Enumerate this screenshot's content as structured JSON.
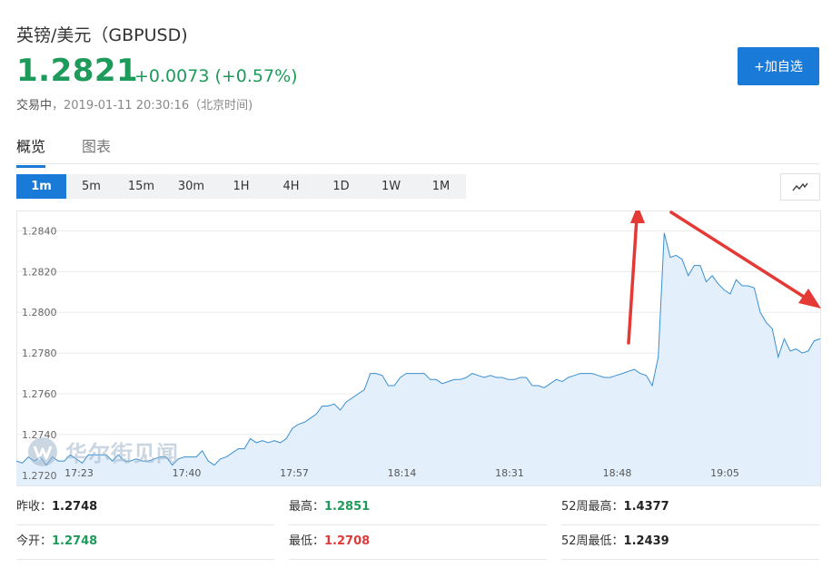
{
  "header": {
    "title": "英镑/美元（GBPUSD)",
    "price": "1.2821",
    "change": "+0.0073 (+0.57%)",
    "status_label": "交易中",
    "status_time": "，2019-01-11 20:30:16（北京时间)",
    "add_watchlist": "+加自选"
  },
  "tabs": [
    {
      "label": "概览",
      "active": true
    },
    {
      "label": "图表",
      "active": false
    }
  ],
  "periods": [
    "1m",
    "5m",
    "15m",
    "30m",
    "1H",
    "4H",
    "1D",
    "1W",
    "1M"
  ],
  "active_period": "1m",
  "chart_type_icon": "line-chart-icon",
  "watermark": "华尔街见闻",
  "colors": {
    "accent": "#1a7ad8",
    "up": "#1e9a5a",
    "down": "#e03a3a",
    "line": "#3a8fd0",
    "fill": "#e3f0fc",
    "annotation": "#e53935"
  },
  "chart_data": {
    "type": "area",
    "title": "",
    "xlabel": "",
    "ylabel": "",
    "ylim": [
      1.2715,
      1.285
    ],
    "yticks": [
      "1.2840",
      "1.2820",
      "1.2800",
      "1.2780",
      "1.2760",
      "1.2740",
      "1.2720"
    ],
    "xticks": [
      "17:23",
      "17:40",
      "17:57",
      "18:14",
      "18:31",
      "18:48",
      "19:05"
    ],
    "grid": true,
    "series": [
      {
        "values": [
          1.2727,
          1.2726,
          1.2729,
          1.2727,
          1.2729,
          1.2725,
          1.2729,
          1.2727,
          1.2727,
          1.273,
          1.2728,
          1.2726,
          1.273,
          1.273,
          1.273,
          1.273,
          1.2727,
          1.273,
          1.2727,
          1.2727,
          1.2728,
          1.2727,
          1.2727,
          1.2728,
          1.2729,
          1.2729,
          1.2725,
          1.2728,
          1.2729,
          1.2729,
          1.2729,
          1.2732,
          1.2727,
          1.2725,
          1.2728,
          1.2729,
          1.2731,
          1.2733,
          1.2733,
          1.2738,
          1.2736,
          1.2737,
          1.2736,
          1.2737,
          1.2736,
          1.2738,
          1.2743,
          1.2745,
          1.2746,
          1.2748,
          1.275,
          1.2754,
          1.2754,
          1.2755,
          1.2752,
          1.2756,
          1.2758,
          1.276,
          1.2762,
          1.277,
          1.277,
          1.2769,
          1.2764,
          1.2764,
          1.2768,
          1.277,
          1.277,
          1.277,
          1.277,
          1.2767,
          1.2767,
          1.2765,
          1.2766,
          1.2767,
          1.2767,
          1.2768,
          1.277,
          1.2769,
          1.2768,
          1.2769,
          1.2768,
          1.2768,
          1.2767,
          1.2767,
          1.2768,
          1.2768,
          1.2764,
          1.2764,
          1.2763,
          1.2765,
          1.2767,
          1.2766,
          1.2768,
          1.2769,
          1.277,
          1.277,
          1.277,
          1.2769,
          1.2768,
          1.2768,
          1.2769,
          1.277,
          1.2771,
          1.2772,
          1.277,
          1.2769,
          1.2764,
          1.2778,
          1.2839,
          1.2827,
          1.2828,
          1.2826,
          1.2818,
          1.2823,
          1.2823,
          1.2815,
          1.2818,
          1.2814,
          1.2811,
          1.2809,
          1.2816,
          1.2813,
          1.2813,
          1.2812,
          1.28,
          1.2795,
          1.2792,
          1.2778,
          1.2787,
          1.2781,
          1.2782,
          1.278,
          1.2781,
          1.2786,
          1.2787
        ]
      }
    ],
    "annotations": [
      {
        "type": "arrow",
        "color": "red",
        "direction": "up"
      },
      {
        "type": "arrow",
        "color": "red",
        "direction": "down-right"
      }
    ]
  },
  "stats": [
    {
      "label": "昨收：",
      "value": "1.2748",
      "tone": "dark"
    },
    {
      "label": "最高：",
      "value": "1.2851",
      "tone": "green"
    },
    {
      "label": "52周最高：",
      "value": "1.4377",
      "tone": "dark"
    },
    {
      "label": "今开：",
      "value": "1.2748",
      "tone": "green"
    },
    {
      "label": "最低：",
      "value": "1.2708",
      "tone": "red"
    },
    {
      "label": "52周最低：",
      "value": "1.2439",
      "tone": "dark"
    }
  ]
}
